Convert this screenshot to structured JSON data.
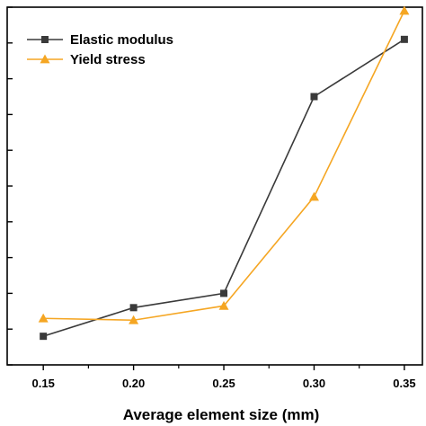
{
  "chart_data": {
    "type": "line",
    "title": "",
    "xlabel": "Average element size (mm)",
    "ylabel": "",
    "x": [
      0.15,
      0.2,
      0.25,
      0.3,
      0.35
    ],
    "x_tick_labels": [
      "0.15",
      "0.20",
      "0.25",
      "0.30",
      "0.35"
    ],
    "xlim": [
      0.13,
      0.36
    ],
    "ylim": [
      0,
      1
    ],
    "grid": false,
    "legend_position": "top-left",
    "series": [
      {
        "name": "Elastic modulus",
        "marker": "square",
        "color": "#3a3a3a",
        "values": [
          0.08,
          0.16,
          0.2,
          0.75,
          0.91
        ]
      },
      {
        "name": "Yield stress",
        "marker": "triangle",
        "color": "#f5a623",
        "values": [
          0.13,
          0.125,
          0.165,
          0.47,
          0.99
        ]
      }
    ]
  }
}
